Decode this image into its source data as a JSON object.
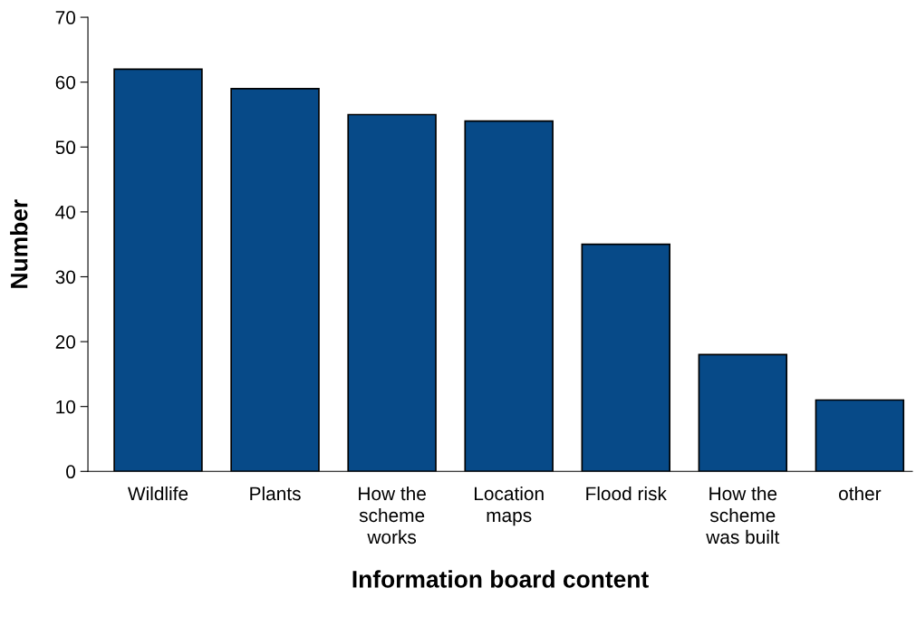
{
  "chart_data": {
    "type": "bar",
    "xlabel": "Information board content",
    "ylabel": "Number",
    "categories": [
      "Wildlife",
      "Plants",
      "How the\nscheme\nworks",
      "Location\nmaps",
      "Flood risk",
      "How the\nscheme\nwas built",
      "other"
    ],
    "values": [
      62,
      59,
      55,
      54,
      35,
      18,
      11
    ],
    "color": "#074a88",
    "ylim": [
      0,
      70
    ],
    "yticks": [
      0,
      10,
      20,
      30,
      40,
      50,
      60,
      70
    ],
    "grid": false
  }
}
